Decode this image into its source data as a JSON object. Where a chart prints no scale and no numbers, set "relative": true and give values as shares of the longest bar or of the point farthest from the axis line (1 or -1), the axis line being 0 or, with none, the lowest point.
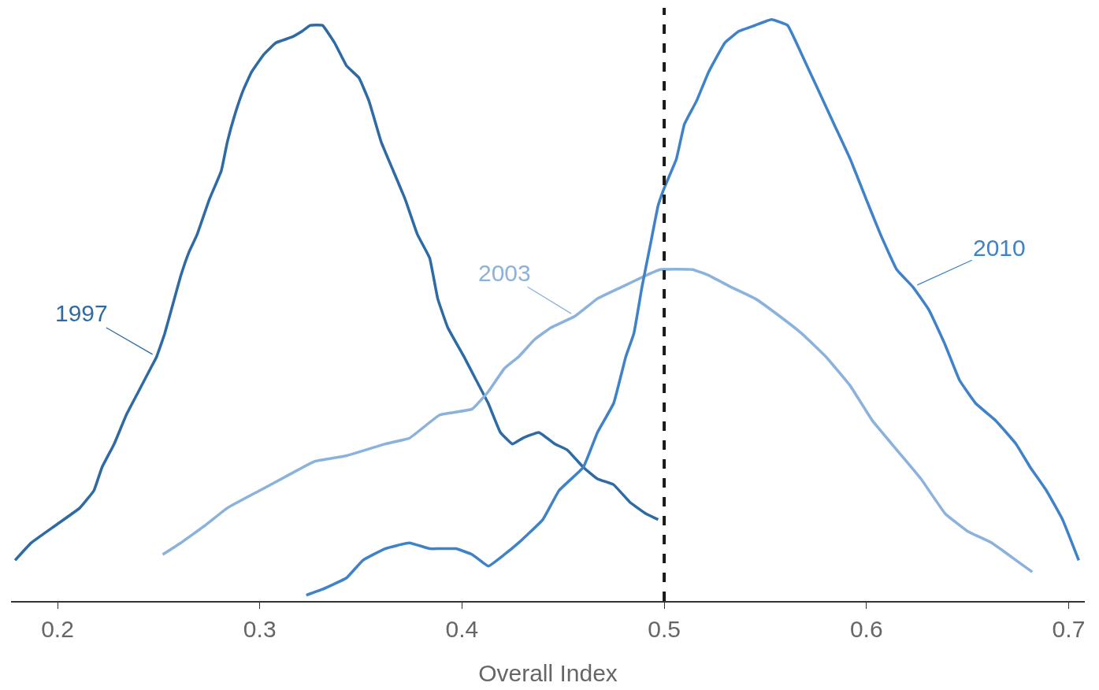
{
  "chart_data": {
    "type": "line",
    "xlabel": "Overall Index",
    "relative": true,
    "legend": false,
    "marker": "none",
    "xlim": [
      0.177,
      0.708
    ],
    "xticks": [
      0.2,
      0.3,
      0.4,
      0.5,
      0.6,
      0.7
    ],
    "ref_lines": [
      {
        "axis": "x",
        "value": 0.5,
        "color": "#1a1a1a",
        "line_style": "dashed"
      }
    ],
    "series": [
      {
        "name": "1997",
        "color": "#2e6aa3",
        "x": [
          0.179,
          0.187,
          0.199,
          0.211,
          0.218,
          0.222,
          0.228,
          0.234,
          0.24,
          0.246,
          0.249,
          0.253,
          0.257,
          0.261,
          0.265,
          0.269,
          0.275,
          0.281,
          0.284,
          0.288,
          0.292,
          0.296,
          0.302,
          0.308,
          0.316,
          0.321,
          0.325,
          0.331,
          0.337,
          0.343,
          0.349,
          0.354,
          0.36,
          0.366,
          0.372,
          0.378,
          0.384,
          0.388,
          0.393,
          0.401,
          0.407,
          0.413,
          0.419,
          0.425,
          0.43,
          0.438,
          0.446,
          0.452,
          0.46,
          0.467,
          0.475,
          0.483,
          0.491,
          0.497
        ],
        "values": [
          0.07,
          0.1,
          0.13,
          0.16,
          0.19,
          0.23,
          0.27,
          0.32,
          0.36,
          0.4,
          0.42,
          0.46,
          0.51,
          0.56,
          0.6,
          0.63,
          0.69,
          0.74,
          0.79,
          0.84,
          0.88,
          0.91,
          0.94,
          0.96,
          0.97,
          0.98,
          0.99,
          0.99,
          0.96,
          0.92,
          0.9,
          0.86,
          0.79,
          0.74,
          0.69,
          0.63,
          0.59,
          0.52,
          0.47,
          0.42,
          0.38,
          0.34,
          0.29,
          0.27,
          0.28,
          0.29,
          0.27,
          0.26,
          0.23,
          0.21,
          0.2,
          0.17,
          0.15,
          0.14
        ]
      },
      {
        "name": "2003",
        "color": "#8ab2dc",
        "x": [
          0.252,
          0.261,
          0.273,
          0.284,
          0.3,
          0.316,
          0.327,
          0.343,
          0.362,
          0.374,
          0.389,
          0.405,
          0.413,
          0.421,
          0.428,
          0.436,
          0.444,
          0.456,
          0.467,
          0.479,
          0.491,
          0.498,
          0.514,
          0.522,
          0.533,
          0.545,
          0.557,
          0.568,
          0.58,
          0.592,
          0.603,
          0.615,
          0.627,
          0.639,
          0.65,
          0.662,
          0.674,
          0.682
        ],
        "values": [
          0.08,
          0.1,
          0.13,
          0.16,
          0.19,
          0.22,
          0.24,
          0.25,
          0.27,
          0.28,
          0.32,
          0.33,
          0.36,
          0.4,
          0.42,
          0.45,
          0.47,
          0.49,
          0.52,
          0.54,
          0.56,
          0.57,
          0.57,
          0.56,
          0.54,
          0.52,
          0.49,
          0.46,
          0.42,
          0.37,
          0.31,
          0.26,
          0.21,
          0.15,
          0.12,
          0.1,
          0.07,
          0.05
        ]
      },
      {
        "name": "2010",
        "color": "#3f82c8",
        "x": [
          0.323,
          0.331,
          0.343,
          0.351,
          0.362,
          0.374,
          0.384,
          0.389,
          0.397,
          0.405,
          0.413,
          0.421,
          0.428,
          0.44,
          0.448,
          0.46,
          0.467,
          0.475,
          0.481,
          0.485,
          0.489,
          0.493,
          0.497,
          0.5,
          0.506,
          0.51,
          0.516,
          0.522,
          0.53,
          0.537,
          0.545,
          0.553,
          0.561,
          0.568,
          0.576,
          0.584,
          0.592,
          0.6,
          0.607,
          0.615,
          0.623,
          0.631,
          0.639,
          0.646,
          0.654,
          0.664,
          0.674,
          0.681,
          0.689,
          0.697,
          0.705
        ],
        "values": [
          0.01,
          0.02,
          0.04,
          0.07,
          0.09,
          0.1,
          0.09,
          0.09,
          0.09,
          0.08,
          0.06,
          0.08,
          0.1,
          0.14,
          0.19,
          0.23,
          0.29,
          0.34,
          0.42,
          0.46,
          0.54,
          0.61,
          0.68,
          0.71,
          0.76,
          0.82,
          0.86,
          0.91,
          0.96,
          0.98,
          0.99,
          1.0,
          0.99,
          0.94,
          0.88,
          0.82,
          0.76,
          0.69,
          0.63,
          0.57,
          0.54,
          0.5,
          0.44,
          0.38,
          0.34,
          0.31,
          0.27,
          0.23,
          0.19,
          0.14,
          0.07
        ]
      }
    ]
  }
}
